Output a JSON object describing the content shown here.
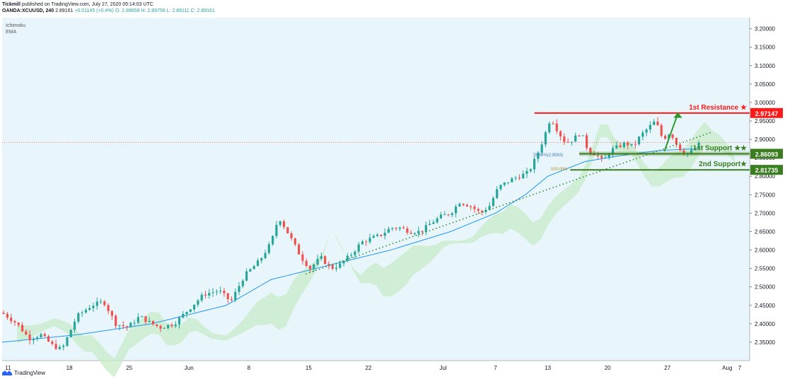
{
  "header": {
    "author": "Tickmill",
    "published_text": "published on TradingView.com, July 27, 2020 05:14:03 UTC",
    "symbol": "OANDA:XCUUSD, 240",
    "last": "2.89161",
    "change": "+0.01145 (+0.4%)",
    "ohlc": "O: 2.89658  H: 2.89758  L: 2.89111  C: 2.89161"
  },
  "indicators": [
    "Ichimoku",
    "EMA"
  ],
  "footer": {
    "brand": "TradingView"
  },
  "colors": {
    "background": "#e8f6fb",
    "up": "#26a69a",
    "down": "#ef5350",
    "resistance": "#ff1a1a",
    "support": "#3a7d1e",
    "trend": "#2f8a2f",
    "ema": "#2196f3",
    "cloud": "#c8ebc8"
  },
  "chart_data": {
    "type": "candlestick",
    "symbol": "OANDA:XCUUSD",
    "timeframe": "240",
    "ylim": [
      2.3,
      3.23
    ],
    "y_ticks": [
      "3.20000",
      "3.15000",
      "3.10000",
      "3.05000",
      "3.00000",
      "2.95000",
      "2.90000",
      "2.85000",
      "2.80000",
      "2.75000",
      "2.70000",
      "2.65000",
      "2.60000",
      "2.55000",
      "2.50000",
      "2.45000",
      "2.40000",
      "2.35000"
    ],
    "x_ticks": [
      "11",
      "18",
      "25",
      "Jun",
      "8",
      "15",
      "22",
      "Jul",
      "7",
      "13",
      "20",
      "27",
      "Aug",
      "7"
    ],
    "price_path": [
      [
        0,
        2.43
      ],
      [
        1,
        2.4
      ],
      [
        1.8,
        2.36
      ],
      [
        2.6,
        2.37
      ],
      [
        3.4,
        2.34
      ],
      [
        4,
        2.33
      ],
      [
        5,
        2.42
      ],
      [
        6,
        2.45
      ],
      [
        6.8,
        2.46
      ],
      [
        7.6,
        2.4
      ],
      [
        8.4,
        2.39
      ],
      [
        9.2,
        2.42
      ],
      [
        10,
        2.4
      ],
      [
        10.6,
        2.39
      ],
      [
        11.5,
        2.4
      ],
      [
        12.5,
        2.44
      ],
      [
        13.5,
        2.48
      ],
      [
        14.5,
        2.49
      ],
      [
        15.3,
        2.46
      ],
      [
        16.2,
        2.53
      ],
      [
        17.2,
        2.57
      ],
      [
        18,
        2.62
      ],
      [
        18.5,
        2.69
      ],
      [
        19.2,
        2.64
      ],
      [
        20,
        2.58
      ],
      [
        20.6,
        2.55
      ],
      [
        21.3,
        2.58
      ],
      [
        22,
        2.55
      ],
      [
        22.6,
        2.56
      ],
      [
        23.4,
        2.59
      ],
      [
        24,
        2.62
      ],
      [
        24.6,
        2.63
      ],
      [
        25.3,
        2.64
      ],
      [
        26,
        2.66
      ],
      [
        26.6,
        2.66
      ],
      [
        27.3,
        2.65
      ],
      [
        28,
        2.65
      ],
      [
        28.6,
        2.67
      ],
      [
        29.3,
        2.69
      ],
      [
        30,
        2.7
      ],
      [
        30.6,
        2.73
      ],
      [
        31.3,
        2.72
      ],
      [
        32,
        2.7
      ],
      [
        32.6,
        2.72
      ],
      [
        33.2,
        2.77
      ],
      [
        34,
        2.79
      ],
      [
        34.6,
        2.8
      ],
      [
        35.2,
        2.81
      ],
      [
        35.7,
        2.85
      ],
      [
        36.2,
        2.9
      ],
      [
        36.7,
        2.96
      ],
      [
        37.2,
        2.92
      ],
      [
        37.7,
        2.89
      ],
      [
        38.2,
        2.9
      ],
      [
        38.7,
        2.92
      ],
      [
        39.2,
        2.87
      ],
      [
        39.7,
        2.86
      ],
      [
        40.2,
        2.84
      ],
      [
        40.7,
        2.87
      ],
      [
        41.2,
        2.88
      ],
      [
        41.7,
        2.89
      ],
      [
        42.2,
        2.88
      ],
      [
        42.7,
        2.91
      ],
      [
        43.2,
        2.93
      ],
      [
        43.7,
        2.95
      ],
      [
        44.2,
        2.9
      ],
      [
        44.7,
        2.92
      ],
      [
        45.2,
        2.88
      ],
      [
        45.7,
        2.86
      ],
      [
        46.2,
        2.87
      ],
      [
        46.7,
        2.89
      ]
    ],
    "ema_series": [
      [
        0,
        2.35
      ],
      [
        5,
        2.37
      ],
      [
        10,
        2.4
      ],
      [
        15,
        2.45
      ],
      [
        18,
        2.52
      ],
      [
        22,
        2.56
      ],
      [
        26,
        2.6
      ],
      [
        30,
        2.65
      ],
      [
        33,
        2.7
      ],
      [
        35,
        2.75
      ],
      [
        36.5,
        2.8
      ],
      [
        39,
        2.84
      ],
      [
        42,
        2.86
      ],
      [
        44,
        2.87
      ],
      [
        46.7,
        2.875
      ]
    ],
    "levels": [
      {
        "name": "1st Resistance ★",
        "value": 2.97147,
        "label": "2.97147",
        "color": "#ff1a1a"
      },
      {
        "name": "1st Support ★★",
        "value": 2.86093,
        "label": "2.86093",
        "color": "#3a7d1e"
      },
      {
        "name": "2nd Support★",
        "value": 2.81735,
        "label": "2.81735",
        "color": "#3a7d1e"
      }
    ],
    "current_price": 2.89161,
    "fib_labels": [
      "78.60%(2.8583)",
      "100.00%"
    ],
    "annotations": [
      "1st Resistance ★",
      "1st Support ★★",
      "2nd Support★"
    ]
  }
}
